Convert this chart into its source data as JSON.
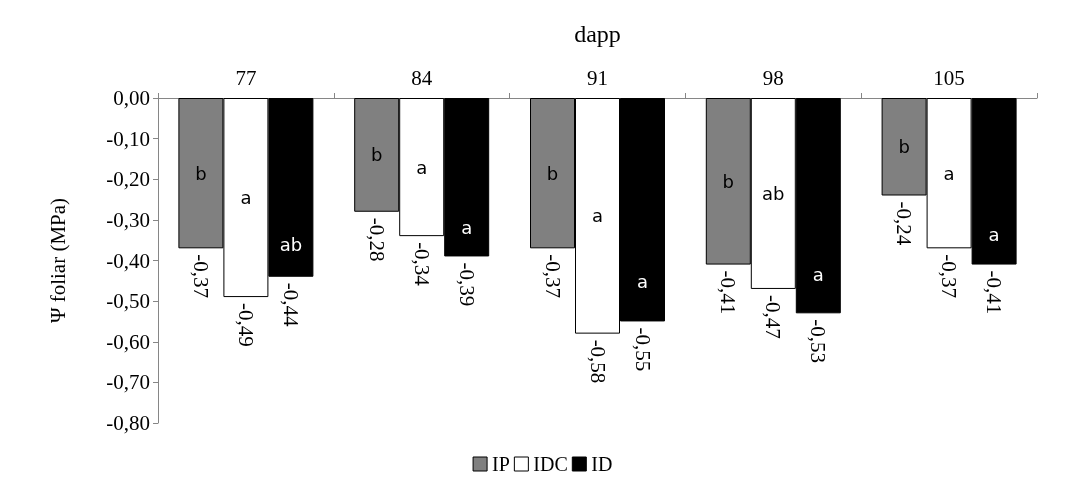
{
  "chart_data": {
    "type": "bar",
    "xlabel": "dapp",
    "ylabel": "Ψ foliar (MPa)",
    "categories": [
      "77",
      "84",
      "91",
      "98",
      "105"
    ],
    "series": [
      {
        "name": "IP",
        "color": "#808080",
        "values": [
          -0.37,
          -0.28,
          -0.37,
          -0.41,
          -0.24
        ],
        "value_labels": [
          "-0,37",
          "-0,28",
          "-0,37",
          "-0,41",
          "-0,24"
        ]
      },
      {
        "name": "IDC",
        "color": "#ffffff",
        "values": [
          -0.49,
          -0.34,
          -0.58,
          -0.47,
          -0.37
        ],
        "value_labels": [
          "-0,49",
          "-0,34",
          "-0,58",
          "-0,47",
          "-0,37"
        ]
      },
      {
        "name": "ID",
        "color": "#000000",
        "values": [
          -0.44,
          -0.39,
          -0.55,
          -0.53,
          -0.41
        ],
        "value_labels": [
          "-0,44",
          "-0,39",
          "-0,55",
          "-0,53",
          "-0,41"
        ]
      }
    ],
    "ylim": [
      -0.8,
      0
    ],
    "yticks": [
      {
        "value": 0,
        "label": "0,00"
      },
      {
        "value": -0.1,
        "label": "-0,10"
      },
      {
        "value": -0.2,
        "label": "-0,20"
      },
      {
        "value": -0.3,
        "label": "-0,30"
      },
      {
        "value": -0.4,
        "label": "-0,40"
      },
      {
        "value": -0.5,
        "label": "-0,50"
      },
      {
        "value": -0.6,
        "label": "-0,60"
      },
      {
        "value": -0.7,
        "label": "-0,70"
      },
      {
        "value": -0.8,
        "label": "-0,80"
      }
    ],
    "annotations": [
      "b",
      "a",
      "ab",
      "b",
      "a",
      "a",
      "b",
      "a",
      "a",
      "b",
      "ab",
      "a",
      "b",
      "a",
      "a"
    ],
    "legend": "bottom",
    "grid": false
  }
}
